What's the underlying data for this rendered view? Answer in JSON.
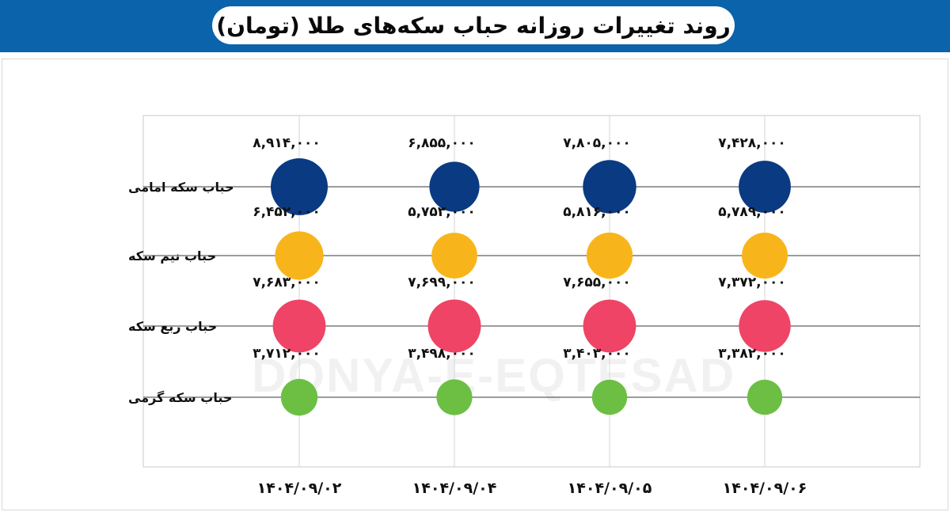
{
  "header": {
    "title": "روند تغییرات روزانه حباب سکه‌های طلا (تومان)",
    "background": "#0b63ab"
  },
  "watermark": {
    "text": "DONYA-E-EQTESAD"
  },
  "chart_data": {
    "type": "scatter",
    "title": "روند تغییرات روزانه حباب سکه‌های طلا (تومان)",
    "unit": "تومان",
    "categories": [
      "۱۴۰۴/۰۹/۰۲",
      "۱۴۰۴/۰۹/۰۴",
      "۱۴۰۴/۰۹/۰۵",
      "۱۴۰۴/۰۹/۰۶"
    ],
    "grid": true,
    "series": [
      {
        "name": "حباب سکه امامی",
        "color": "#0a3a82",
        "values": [
          8914000,
          6855000,
          7805000,
          7428000
        ],
        "labels": [
          "۸,۹۱۴,۰۰۰",
          "۶,۸۵۵,۰۰۰",
          "۷,۸۰۵,۰۰۰",
          "۷,۴۲۸,۰۰۰"
        ]
      },
      {
        "name": "حباب نیم سکه",
        "color": "#f8b51b",
        "values": [
          6452000,
          5753000,
          5816000,
          5789000
        ],
        "labels": [
          "۶,۴۵۲,۰۰۰",
          "۵,۷۵۳,۰۰۰",
          "۵,۸۱۶,۰۰۰",
          "۵,۷۸۹,۰۰۰"
        ]
      },
      {
        "name": "حباب ربع سکه",
        "color": "#ef4465",
        "values": [
          7683000,
          7699000,
          7655000,
          7372000
        ],
        "labels": [
          "۷,۶۸۳,۰۰۰",
          "۷,۶۹۹,۰۰۰",
          "۷,۶۵۵,۰۰۰",
          "۷,۳۷۲,۰۰۰"
        ]
      },
      {
        "name": "حباب سکه گرمی",
        "color": "#6cbf43",
        "values": [
          3712000,
          3498000,
          3403000,
          3382000
        ],
        "labels": [
          "۳,۷۱۲,۰۰۰",
          "۳,۴۹۸,۰۰۰",
          "۳,۴۰۳,۰۰۰",
          "۳,۳۸۲,۰۰۰"
        ]
      }
    ]
  }
}
